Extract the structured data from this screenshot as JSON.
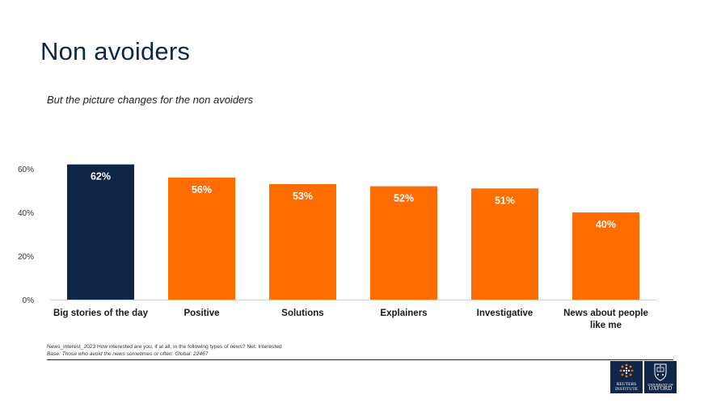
{
  "slide": {
    "title": "Non avoiders",
    "subtitle": "But the picture changes for the non avoiders",
    "footnote": "News_interest_2023 How interested are you, if at all, in the following types of news? Net: Interested",
    "base": "Base: Those who avoid the news sometimes or often: Global: 22467"
  },
  "logos": {
    "reuters_line1": "REUTERS",
    "reuters_line2": "INSTITUTE",
    "oxford_line1": "UNIVERSITY OF",
    "oxford_line2": "OXFORD"
  },
  "colors": {
    "highlight": "#0f2547",
    "bar": "#ff6c00",
    "title": "#10264b"
  },
  "chart_data": {
    "type": "bar",
    "categories": [
      [
        "Big stories of the day"
      ],
      [
        "Positive"
      ],
      [
        "Solutions"
      ],
      [
        "Explainers"
      ],
      [
        "Investigative"
      ],
      [
        "News about people",
        "like me"
      ]
    ],
    "values": [
      62,
      56,
      53,
      52,
      51,
      40
    ],
    "data_labels": [
      "62%",
      "56%",
      "53%",
      "52%",
      "51%",
      "40%"
    ],
    "highlight_index": 0,
    "y_ticks": [
      0,
      20,
      40,
      60
    ],
    "y_tick_labels": [
      "0%",
      "20%",
      "40%",
      "60%"
    ],
    "ylim": [
      0,
      60
    ],
    "grid": false,
    "xlabel": "",
    "ylabel": ""
  }
}
